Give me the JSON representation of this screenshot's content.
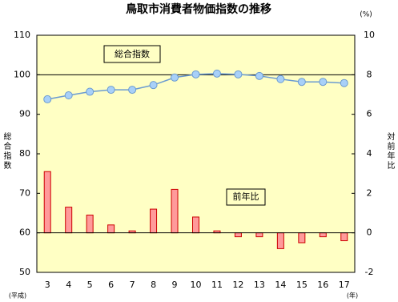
{
  "chart_data": {
    "type": "combo",
    "title": "鳥取市消費者物価指数の推移",
    "ylabel": "総合指数",
    "y2label": "対前年比",
    "y2unit": "(%)",
    "xlabel_left": "(平成)",
    "xlabel_right": "(年)",
    "categories": [
      "3",
      "4",
      "5",
      "6",
      "7",
      "8",
      "9",
      "10",
      "11",
      "12",
      "13",
      "14",
      "15",
      "16",
      "17"
    ],
    "ylim": [
      50,
      110
    ],
    "yticks": [
      50,
      60,
      70,
      80,
      90,
      100,
      110
    ],
    "y2lim": [
      -2,
      10
    ],
    "y2ticks": [
      -2,
      0,
      2,
      4,
      6,
      8,
      10
    ],
    "hlines": [
      100
    ],
    "background": "#ffffc4",
    "series": [
      {
        "name": "総合指数",
        "type": "line",
        "axis": "y",
        "color": "#6b9bd1",
        "marker_color": "#a8d0f8",
        "values": [
          93.8,
          94.8,
          95.7,
          96.2,
          96.2,
          97.4,
          99.3,
          100.1,
          100.3,
          100.1,
          99.7,
          98.9,
          98.2,
          98.2,
          97.9
        ]
      },
      {
        "name": "前年比",
        "type": "bar",
        "axis": "y2",
        "color": "#ff9a9a",
        "edge_color": "#cc0000",
        "values": [
          3.1,
          1.3,
          0.9,
          0.4,
          0.1,
          1.2,
          2.2,
          0.8,
          0.1,
          -0.2,
          -0.2,
          -0.8,
          -0.5,
          -0.2,
          -0.4
        ]
      }
    ]
  }
}
